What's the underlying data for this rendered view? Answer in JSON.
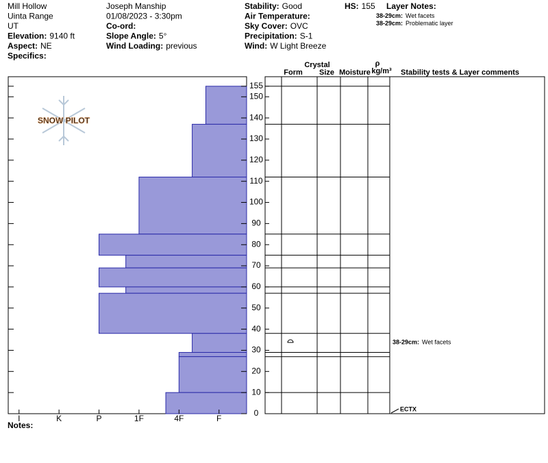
{
  "header": {
    "columns": [
      [
        {
          "value": "Mill Hollow"
        },
        {
          "value": "Uinta Range"
        },
        {
          "value": "UT"
        },
        {
          "label": "Elevation:",
          "value": "9140 ft"
        },
        {
          "label": "Aspect:",
          "value": "NE"
        },
        {
          "label": "Specifics:"
        }
      ],
      [
        {
          "value": "Joseph Manship"
        },
        {
          "value": "01/08/2023 - 3:30pm"
        },
        {
          "label": "Co-ord:"
        },
        {
          "label": "Slope Angle:",
          "value": "5°"
        },
        {
          "label": "Wind Loading:",
          "value": "previous"
        }
      ],
      [
        {
          "label": "Stability:",
          "value": "Good"
        },
        {
          "label": "Air Temperature:"
        },
        {
          "label": "Sky Cover:",
          "value": "OVC"
        },
        {
          "label": "Precipitation:",
          "value": "S-1"
        },
        {
          "label": "Wind:",
          "value": "W Light Breeze"
        }
      ]
    ],
    "hs": {
      "label": "HS:",
      "value": "155"
    },
    "layer_notes_title": "Layer Notes:",
    "layer_notes": [
      {
        "range": "38-29cm:",
        "text": "Wet facets"
      },
      {
        "range": "38-29cm:",
        "text": "Problematic layer"
      }
    ],
    "notes": "Notes:"
  },
  "chart_data": {
    "type": "hardness_profile",
    "watermark": "SNOW PILOT",
    "layers": [
      {
        "top": 155,
        "bottom": 137,
        "hardness": 1.33
      },
      {
        "top": 137,
        "bottom": 112,
        "hardness": 1.67
      },
      {
        "top": 112,
        "bottom": 85,
        "hardness": 3
      },
      {
        "top": 85,
        "bottom": 75,
        "hardness": 4
      },
      {
        "top": 75,
        "bottom": 69,
        "hardness": 3.33
      },
      {
        "top": 69,
        "bottom": 60,
        "hardness": 4
      },
      {
        "top": 60,
        "bottom": 57,
        "hardness": 3.33
      },
      {
        "top": 57,
        "bottom": 38,
        "hardness": 4
      },
      {
        "top": 38,
        "bottom": 29,
        "hardness": 1.67
      },
      {
        "top": 29,
        "bottom": 27,
        "hardness": 2
      },
      {
        "top": 27,
        "bottom": 10,
        "hardness": 2
      },
      {
        "top": 10,
        "bottom": 0,
        "hardness": 2.33
      }
    ],
    "color": "#9999d9",
    "edge_color": "#2a2aa8",
    "ylim": [
      0,
      159.5
    ],
    "yticks": [
      0,
      10,
      20,
      30,
      40,
      50,
      60,
      70,
      80,
      90,
      100,
      110,
      120,
      130,
      140,
      150,
      155
    ],
    "xlim": [
      6.27,
      0.31
    ],
    "xticks": [
      {
        "value": 6,
        "label": "I"
      },
      {
        "value": 5,
        "label": "K"
      },
      {
        "value": 4,
        "label": "P"
      },
      {
        "value": 3,
        "label": "1F"
      },
      {
        "value": 2,
        "label": "4F"
      },
      {
        "value": 1,
        "label": "F"
      }
    ],
    "table_headers": {
      "crystal": "Crystal",
      "form": "Form",
      "size": "Size",
      "moisture": "Moisture",
      "rho": "ρ",
      "density_unit": "kg/m³",
      "comments": "Stability tests & Layer comments"
    },
    "comments": [
      {
        "range": "38-29cm:",
        "text": "Wet facets",
        "top": 38,
        "bottom": 29
      }
    ],
    "tests": [
      {
        "label": "ECTX",
        "height": 0
      }
    ]
  }
}
